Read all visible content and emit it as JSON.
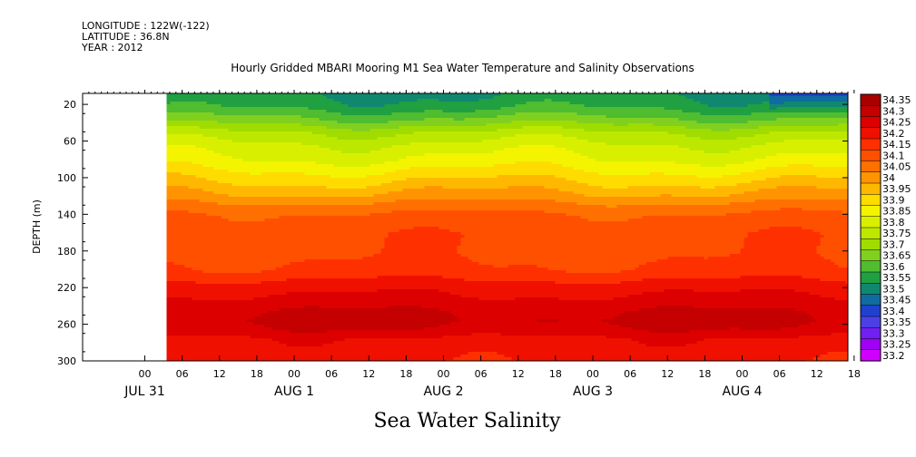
{
  "header": {
    "longitude": "LONGITUDE : 122W(-122)",
    "latitude": "LATITUDE : 36.8N",
    "year": "YEAR : 2012"
  },
  "chart_data": {
    "type": "heatmap",
    "title": "Hourly Gridded MBARI Mooring M1 Sea Water Temperature and Salinity Observations",
    "bottom_title": "Sea Water Salinity",
    "ylabel": "DEPTH (m)",
    "y_ticks": [
      20,
      60,
      100,
      140,
      180,
      220,
      260,
      300
    ],
    "y_range": [
      300,
      8
    ],
    "x_tick_labels": [
      "00",
      "06",
      "12",
      "18",
      "00",
      "06",
      "12",
      "18",
      "00",
      "06",
      "12",
      "18",
      "00",
      "06",
      "12",
      "18",
      "00",
      "06",
      "12",
      "18"
    ],
    "x_hours": [
      0,
      6,
      12,
      18,
      24,
      30,
      36,
      42,
      48,
      54,
      60,
      66,
      72,
      78,
      84,
      90,
      96,
      102,
      108,
      114
    ],
    "x_range_hours": [
      -10,
      113
    ],
    "data_start_hour": 3.5,
    "date_labels": [
      "JUL 31",
      "AUG  1",
      "AUG  2",
      "AUG  3",
      "AUG  4"
    ],
    "date_hours": [
      0,
      24,
      48,
      72,
      96
    ],
    "colorbar_levels": [
      "34.35",
      "34.3",
      "34.25",
      "34.2",
      "34.15",
      "34.1",
      "34.05",
      "34",
      "33.95",
      "33.9",
      "33.85",
      "33.8",
      "33.75",
      "33.7",
      "33.65",
      "33.6",
      "33.55",
      "33.5",
      "33.45",
      "33.4",
      "33.35",
      "33.3",
      "33.25",
      "33.2"
    ],
    "colorbar_colors": [
      "#a80000",
      "#c40000",
      "#dc0000",
      "#f01000",
      "#ff3000",
      "#ff5000",
      "#ff7000",
      "#ff9400",
      "#ffb800",
      "#ffdc00",
      "#f4f400",
      "#d8f000",
      "#bce800",
      "#a0dc00",
      "#80d020",
      "#50bc30",
      "#20a040",
      "#108870",
      "#106ca0",
      "#2040d0",
      "#4c40e4",
      "#7020f0",
      "#a000f4",
      "#d000ff"
    ],
    "depth_profile": [
      {
        "depth": 8,
        "value": 33.55
      },
      {
        "depth": 20,
        "value": 33.58
      },
      {
        "depth": 35,
        "value": 33.66
      },
      {
        "depth": 50,
        "value": 33.76
      },
      {
        "depth": 65,
        "value": 33.82
      },
      {
        "depth": 80,
        "value": 33.86
      },
      {
        "depth": 95,
        "value": 33.92
      },
      {
        "depth": 110,
        "value": 33.98
      },
      {
        "depth": 125,
        "value": 34.05
      },
      {
        "depth": 140,
        "value": 34.11
      },
      {
        "depth": 160,
        "value": 34.14
      },
      {
        "depth": 180,
        "value": 34.14
      },
      {
        "depth": 200,
        "value": 34.16
      },
      {
        "depth": 215,
        "value": 34.22
      },
      {
        "depth": 230,
        "value": 34.26
      },
      {
        "depth": 245,
        "value": 34.3
      },
      {
        "depth": 255,
        "value": 34.31
      },
      {
        "depth": 265,
        "value": 34.29
      },
      {
        "depth": 275,
        "value": 34.24
      },
      {
        "depth": 290,
        "value": 34.22
      },
      {
        "depth": 300,
        "value": 34.21
      }
    ]
  }
}
